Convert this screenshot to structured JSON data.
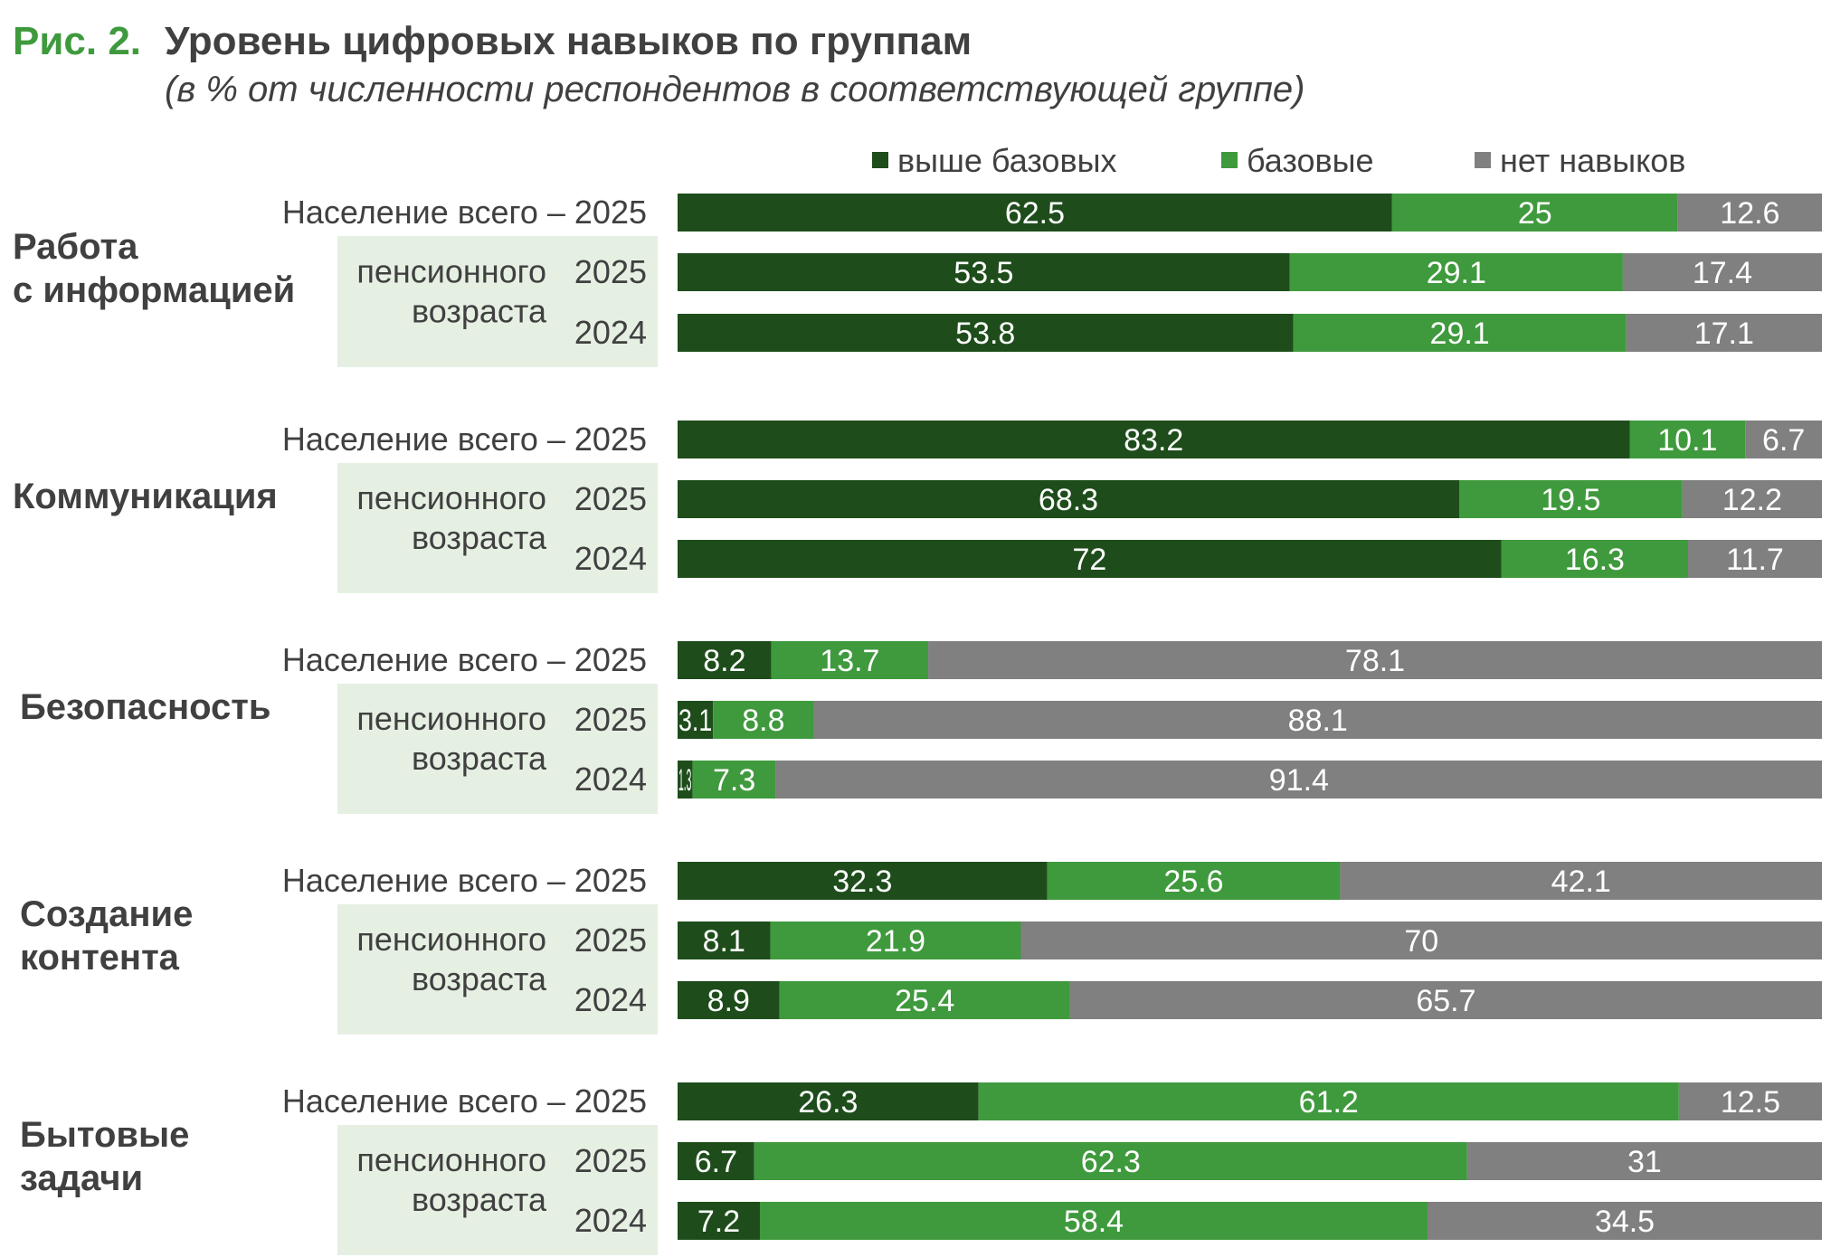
{
  "figure_label": "Рис. 2.",
  "title": "Уровень цифровых навыков по группам",
  "subtitle": "(в % от численности респондентов в соответствующей группе)",
  "colors": {
    "above": "#1e4d1b",
    "basic": "#3f9a3d",
    "none": "#808080",
    "label_text": "#404040",
    "pension_bg": "#e5f0e3",
    "figure_label": "#3f9a3d"
  },
  "chart_data": {
    "type": "bar",
    "orientation": "horizontal",
    "stacked": true,
    "unit": "%",
    "legend_position": "top",
    "series": [
      {
        "key": "above",
        "name": "выше базовых"
      },
      {
        "key": "basic",
        "name": "базовые"
      },
      {
        "key": "none",
        "name": "нет навыков"
      }
    ],
    "groups": [
      {
        "name": "Работа с информацией",
        "name_lines": [
          "Работа",
          "с информацией"
        ],
        "pension_label_lines": [
          "пенсионного",
          "возраста"
        ],
        "rows": [
          {
            "label": "Население всего – 2025",
            "values": [
              62.5,
              25,
              12.6
            ],
            "labels": [
              "62.5",
              "25",
              "12.6"
            ]
          },
          {
            "label": "2025",
            "values": [
              53.5,
              29.1,
              17.4
            ],
            "labels": [
              "53.5",
              "29.1",
              "17.4"
            ]
          },
          {
            "label": "2024",
            "values": [
              53.8,
              29.1,
              17.1
            ],
            "labels": [
              "53.8",
              "29.1",
              "17.1"
            ]
          }
        ]
      },
      {
        "name": "Коммуникация",
        "name_lines": [
          "Коммуникация"
        ],
        "pension_label_lines": [
          "пенсионного",
          "возраста"
        ],
        "rows": [
          {
            "label": "Население всего – 2025",
            "values": [
              83.2,
              10.1,
              6.7
            ],
            "labels": [
              "83.2",
              "10.1",
              "6.7"
            ]
          },
          {
            "label": "2025",
            "values": [
              68.3,
              19.5,
              12.2
            ],
            "labels": [
              "68.3",
              "19.5",
              "12.2"
            ]
          },
          {
            "label": "2024",
            "values": [
              72,
              16.3,
              11.7
            ],
            "labels": [
              "72",
              "16.3",
              "11.7"
            ]
          }
        ]
      },
      {
        "name": "Безопасность",
        "name_lines": [
          "Безопасность"
        ],
        "pension_label_lines": [
          "пенсионного",
          "возраста"
        ],
        "rows": [
          {
            "label": "Население всего – 2025",
            "values": [
              8.2,
              13.7,
              78.1
            ],
            "labels": [
              "8.2",
              "13.7",
              "78.1"
            ]
          },
          {
            "label": "2025",
            "values": [
              3.1,
              8.8,
              88.1
            ],
            "labels": [
              "3.1",
              "8.8",
              "88.1"
            ]
          },
          {
            "label": "2024",
            "values": [
              1.3,
              7.3,
              91.4
            ],
            "labels": [
              "1.3",
              "7.3",
              "91.4"
            ]
          }
        ]
      },
      {
        "name": "Создание контента",
        "name_lines": [
          "Создание",
          "контента"
        ],
        "pension_label_lines": [
          "пенсионного",
          "возраста"
        ],
        "rows": [
          {
            "label": "Население всего – 2025",
            "values": [
              32.3,
              25.6,
              42.1
            ],
            "labels": [
              "32.3",
              "25.6",
              "42.1"
            ]
          },
          {
            "label": "2025",
            "values": [
              8.1,
              21.9,
              70
            ],
            "labels": [
              "8.1",
              "21.9",
              "70"
            ]
          },
          {
            "label": "2024",
            "values": [
              8.9,
              25.4,
              65.7
            ],
            "labels": [
              "8.9",
              "25.4",
              "65.7"
            ]
          }
        ]
      },
      {
        "name": "Бытовые задачи",
        "name_lines": [
          "Бытовые",
          "задачи"
        ],
        "pension_label_lines": [
          "пенсионного",
          "возраста"
        ],
        "rows": [
          {
            "label": "Население всего – 2025",
            "values": [
              26.3,
              61.2,
              12.5
            ],
            "labels": [
              "26.3",
              "61.2",
              "12.5"
            ]
          },
          {
            "label": "2025",
            "values": [
              6.7,
              62.3,
              31
            ],
            "labels": [
              "6.7",
              "62.3",
              "31"
            ]
          },
          {
            "label": "2024",
            "values": [
              7.2,
              58.4,
              34.5
            ],
            "labels": [
              "7.2",
              "58.4",
              "34.5"
            ]
          }
        ]
      }
    ]
  }
}
